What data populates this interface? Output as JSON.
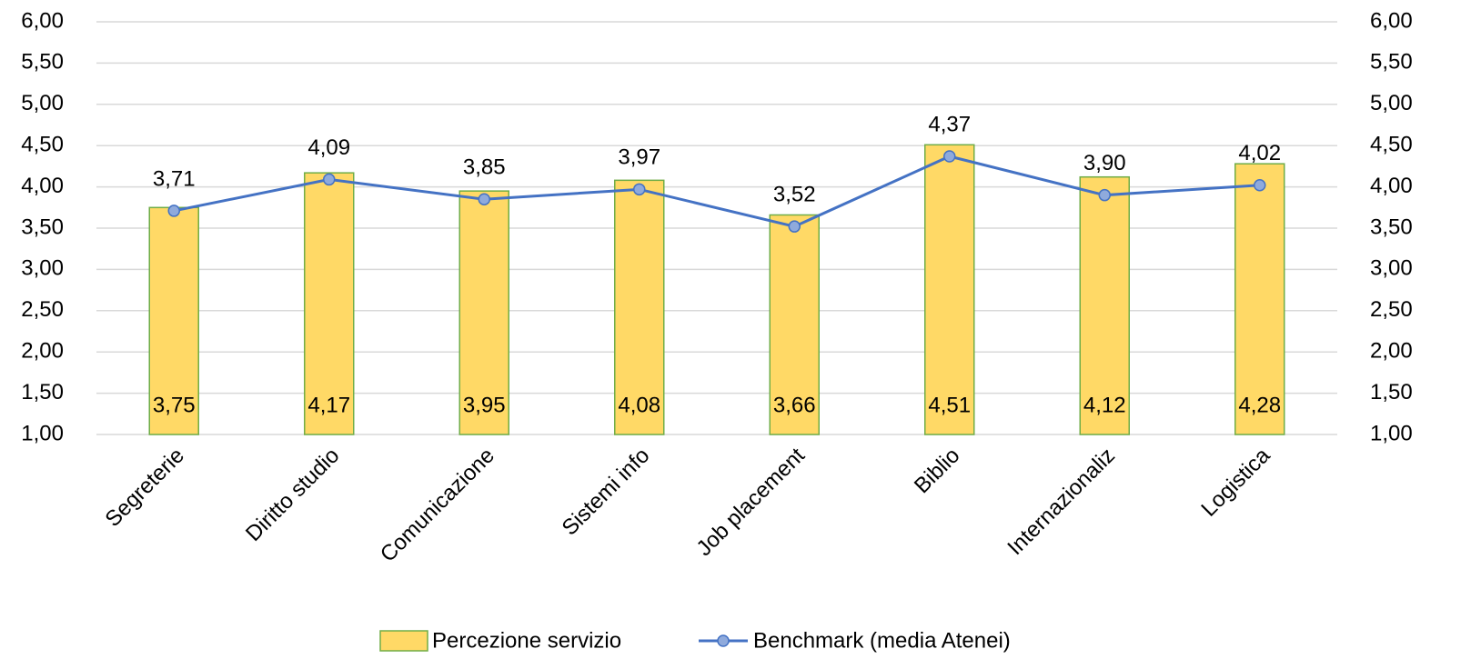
{
  "chart_data": {
    "type": "bar",
    "categories": [
      "Segreterie",
      "Diritto studio",
      "Comunicazione",
      "Sistemi info",
      "Job placement",
      "Biblio",
      "Internazionaliz",
      "Logistica"
    ],
    "series": [
      {
        "name": "Percezione servizio",
        "type": "bar",
        "color": "#FFD966",
        "edge_color": "#70AD47",
        "values": [
          3.75,
          4.17,
          3.95,
          4.08,
          3.66,
          4.51,
          4.12,
          4.28
        ],
        "value_labels": [
          "3,75",
          "4,17",
          "3,95",
          "4,08",
          "3,66",
          "4,51",
          "4,12",
          "4,28"
        ]
      },
      {
        "name": "Benchmark (media Atenei)",
        "type": "line",
        "axis": "y2",
        "color": "#4472C4",
        "marker_color": "#8FAADC",
        "values": [
          3.71,
          4.09,
          3.85,
          3.97,
          3.52,
          4.37,
          3.9,
          4.02
        ],
        "value_labels": [
          "3,71",
          "4,09",
          "3,85",
          "3,97",
          "3,52",
          "4,37",
          "3,90",
          "4,02"
        ]
      }
    ],
    "ylim": [
      1,
      6
    ],
    "yticks": [
      {
        "value": 1,
        "label": "1,00"
      },
      {
        "value": 1.5,
        "label": "1,50"
      },
      {
        "value": 2,
        "label": "2,00"
      },
      {
        "value": 2.5,
        "label": "2,50"
      },
      {
        "value": 3,
        "label": "3,00"
      },
      {
        "value": 3.5,
        "label": "3,50"
      },
      {
        "value": 4,
        "label": "4,00"
      },
      {
        "value": 4.5,
        "label": "4,50"
      },
      {
        "value": 5,
        "label": "5,00"
      },
      {
        "value": 5.5,
        "label": "5,50"
      },
      {
        "value": 6,
        "label": "6,00"
      }
    ],
    "y2lim": [
      1,
      6
    ],
    "y2ticks": [
      {
        "value": 1,
        "label": "1,00"
      },
      {
        "value": 1.5,
        "label": "1,50"
      },
      {
        "value": 2,
        "label": "2,00"
      },
      {
        "value": 2.5,
        "label": "2,50"
      },
      {
        "value": 3,
        "label": "3,00"
      },
      {
        "value": 3.5,
        "label": "3,50"
      },
      {
        "value": 4,
        "label": "4,00"
      },
      {
        "value": 4.5,
        "label": "4,50"
      },
      {
        "value": 5,
        "label": "5,00"
      },
      {
        "value": 5.5,
        "label": "5,50"
      },
      {
        "value": 6,
        "label": "6,00"
      }
    ],
    "grid": true,
    "legend": "bottom"
  }
}
